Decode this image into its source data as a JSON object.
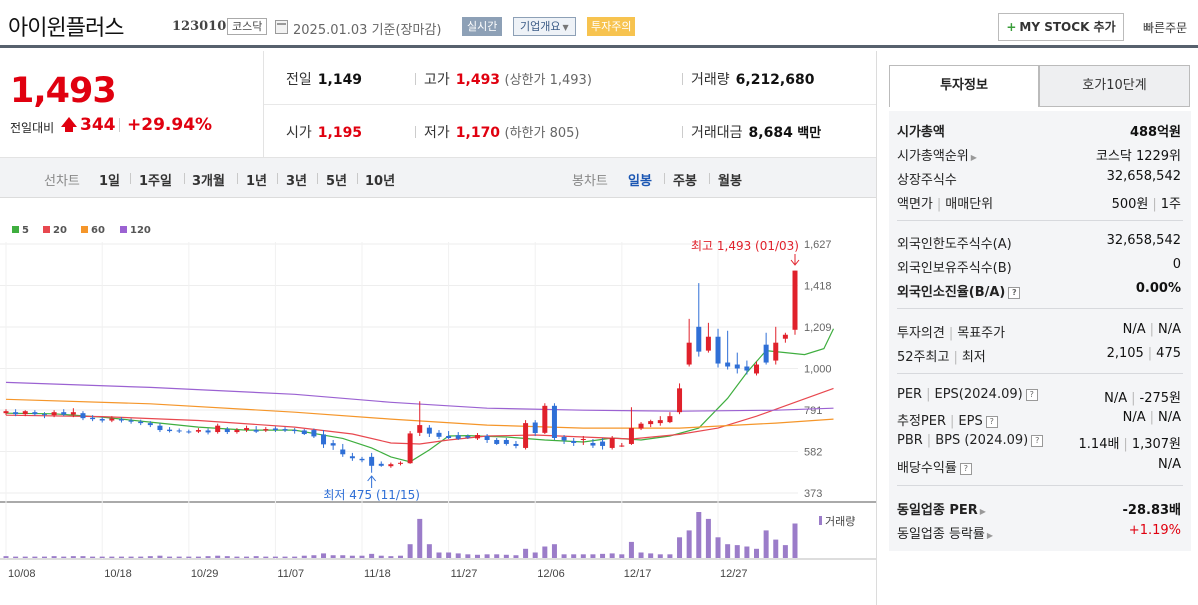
{
  "header": {
    "stock_name": "아이윈플러스",
    "stock_code": "123010",
    "market": "코스닥",
    "date_text": "2025.01.03  기준(장마감)",
    "realtime_label": "실시간",
    "company_label": "기업개요",
    "caution_label": "투자주의",
    "mystock_label": "MY STOCK 추가",
    "quick_order_label": "빠른주문"
  },
  "price": {
    "current": "1,493",
    "change_label": "전일대비",
    "change_amount": "344",
    "change_pct": "+29.94%",
    "prev_label": "전일",
    "prev_value": "1,149",
    "high_label": "고가",
    "high_value": "1,493",
    "upper_limit": "(상한가 1,493)",
    "volume_label": "거래량",
    "volume_value": "6,212,680",
    "open_label": "시가",
    "open_value": "1,195",
    "low_label": "저가",
    "low_value": "1,170",
    "lower_limit": "(하한가 805)",
    "amount_label": "거래대금",
    "amount_value": "8,684",
    "amount_unit": "백만"
  },
  "toolbar": {
    "line_chart_label": "선차트",
    "periods": [
      "1일",
      "1주일",
      "3개월",
      "1년",
      "3년",
      "5년",
      "10년"
    ],
    "candle_chart_label": "봉차트",
    "candle_periods": [
      "일봉",
      "주봉",
      "월봉"
    ],
    "active_candle": "일봉"
  },
  "chart_data": {
    "type": "candlestick",
    "legend": [
      {
        "name": "5",
        "color": "#3fae3f"
      },
      {
        "name": "20",
        "color": "#e8484f"
      },
      {
        "name": "60",
        "color": "#f5962a"
      },
      {
        "name": "120",
        "color": "#9b62d2"
      }
    ],
    "y_ticks": [
      "1,627",
      "1,418",
      "1,209",
      "1,000",
      "791",
      "582",
      "373"
    ],
    "ylim": [
      373,
      1627
    ],
    "x_ticks": [
      "10/08",
      "10/18",
      "10/29",
      "11/07",
      "11/18",
      "11/27",
      "12/06",
      "12/17",
      "12/27"
    ],
    "annotation_high": "최고 1,493 (01/03)",
    "annotation_low": "최저 475 (11/15)",
    "volume_label": "거래량",
    "candles": [
      {
        "o": 775,
        "c": 785,
        "h": 795,
        "l": 765,
        "v": 0.04
      },
      {
        "o": 780,
        "c": 770,
        "h": 795,
        "l": 760,
        "v": 0.03
      },
      {
        "o": 770,
        "c": 785,
        "h": 790,
        "l": 760,
        "v": 0.03
      },
      {
        "o": 780,
        "c": 770,
        "h": 790,
        "l": 762,
        "v": 0.03
      },
      {
        "o": 770,
        "c": 765,
        "h": 780,
        "l": 750,
        "v": 0.03
      },
      {
        "o": 765,
        "c": 780,
        "h": 790,
        "l": 755,
        "v": 0.04
      },
      {
        "o": 780,
        "c": 768,
        "h": 795,
        "l": 760,
        "v": 0.03
      },
      {
        "o": 768,
        "c": 780,
        "h": 800,
        "l": 755,
        "v": 0.04
      },
      {
        "o": 775,
        "c": 750,
        "h": 785,
        "l": 740,
        "v": 0.04
      },
      {
        "o": 752,
        "c": 745,
        "h": 765,
        "l": 735,
        "v": 0.03
      },
      {
        "o": 746,
        "c": 738,
        "h": 755,
        "l": 728,
        "v": 0.03
      },
      {
        "o": 738,
        "c": 748,
        "h": 760,
        "l": 730,
        "v": 0.03
      },
      {
        "o": 745,
        "c": 738,
        "h": 755,
        "l": 728,
        "v": 0.03
      },
      {
        "o": 738,
        "c": 732,
        "h": 748,
        "l": 722,
        "v": 0.03
      },
      {
        "o": 732,
        "c": 725,
        "h": 742,
        "l": 715,
        "v": 0.03
      },
      {
        "o": 725,
        "c": 715,
        "h": 735,
        "l": 705,
        "v": 0.04
      },
      {
        "o": 712,
        "c": 690,
        "h": 725,
        "l": 680,
        "v": 0.05
      },
      {
        "o": 692,
        "c": 685,
        "h": 705,
        "l": 678,
        "v": 0.03
      },
      {
        "o": 688,
        "c": 683,
        "h": 698,
        "l": 675,
        "v": 0.03
      },
      {
        "o": 683,
        "c": 680,
        "h": 692,
        "l": 672,
        "v": 0.03
      },
      {
        "o": 682,
        "c": 690,
        "h": 700,
        "l": 675,
        "v": 0.03
      },
      {
        "o": 688,
        "c": 678,
        "h": 698,
        "l": 668,
        "v": 0.04
      },
      {
        "o": 680,
        "c": 712,
        "h": 722,
        "l": 672,
        "v": 0.05
      },
      {
        "o": 695,
        "c": 680,
        "h": 705,
        "l": 670,
        "v": 0.04
      },
      {
        "o": 680,
        "c": 690,
        "h": 700,
        "l": 672,
        "v": 0.03
      },
      {
        "o": 690,
        "c": 700,
        "h": 712,
        "l": 680,
        "v": 0.03
      },
      {
        "o": 690,
        "c": 682,
        "h": 710,
        "l": 675,
        "v": 0.04
      },
      {
        "o": 688,
        "c": 695,
        "h": 705,
        "l": 680,
        "v": 0.03
      },
      {
        "o": 698,
        "c": 690,
        "h": 708,
        "l": 680,
        "v": 0.03
      },
      {
        "o": 695,
        "c": 688,
        "h": 705,
        "l": 680,
        "v": 0.03
      },
      {
        "o": 690,
        "c": 685,
        "h": 700,
        "l": 672,
        "v": 0.03
      },
      {
        "o": 688,
        "c": 670,
        "h": 695,
        "l": 665,
        "v": 0.05
      },
      {
        "o": 690,
        "c": 658,
        "h": 698,
        "l": 650,
        "v": 0.06
      },
      {
        "o": 668,
        "c": 618,
        "h": 690,
        "l": 600,
        "v": 0.1
      },
      {
        "o": 624,
        "c": 612,
        "h": 640,
        "l": 590,
        "v": 0.06
      },
      {
        "o": 592,
        "c": 568,
        "h": 620,
        "l": 555,
        "v": 0.06
      },
      {
        "o": 558,
        "c": 548,
        "h": 575,
        "l": 535,
        "v": 0.05
      },
      {
        "o": 545,
        "c": 538,
        "h": 555,
        "l": 528,
        "v": 0.05
      },
      {
        "o": 555,
        "c": 510,
        "h": 575,
        "l": 475,
        "v": 0.09
      },
      {
        "o": 520,
        "c": 510,
        "h": 532,
        "l": 505,
        "v": 0.05
      },
      {
        "o": 508,
        "c": 518,
        "h": 526,
        "l": 500,
        "v": 0.04
      },
      {
        "o": 520,
        "c": 525,
        "h": 532,
        "l": 512,
        "v": 0.05
      },
      {
        "o": 523,
        "c": 673,
        "h": 685,
        "l": 520,
        "v": 0.3
      },
      {
        "o": 676,
        "c": 715,
        "h": 835,
        "l": 660,
        "v": 0.85
      },
      {
        "o": 702,
        "c": 672,
        "h": 715,
        "l": 655,
        "v": 0.3
      },
      {
        "o": 676,
        "c": 656,
        "h": 690,
        "l": 645,
        "v": 0.12
      },
      {
        "o": 660,
        "c": 650,
        "h": 685,
        "l": 645,
        "v": 0.12
      },
      {
        "o": 664,
        "c": 646,
        "h": 680,
        "l": 640,
        "v": 0.1
      },
      {
        "o": 660,
        "c": 652,
        "h": 668,
        "l": 645,
        "v": 0.08
      },
      {
        "o": 648,
        "c": 665,
        "h": 675,
        "l": 640,
        "v": 0.07
      },
      {
        "o": 660,
        "c": 640,
        "h": 670,
        "l": 625,
        "v": 0.08
      },
      {
        "o": 640,
        "c": 620,
        "h": 650,
        "l": 615,
        "v": 0.08
      },
      {
        "o": 640,
        "c": 620,
        "h": 650,
        "l": 612,
        "v": 0.07
      },
      {
        "o": 620,
        "c": 610,
        "h": 635,
        "l": 598,
        "v": 0.06
      },
      {
        "o": 600,
        "c": 725,
        "h": 740,
        "l": 592,
        "v": 0.2
      },
      {
        "o": 728,
        "c": 675,
        "h": 740,
        "l": 660,
        "v": 0.12
      },
      {
        "o": 676,
        "c": 812,
        "h": 825,
        "l": 670,
        "v": 0.25
      },
      {
        "o": 812,
        "c": 650,
        "h": 825,
        "l": 640,
        "v": 0.3
      },
      {
        "o": 655,
        "c": 638,
        "h": 665,
        "l": 620,
        "v": 0.08
      },
      {
        "o": 635,
        "c": 625,
        "h": 650,
        "l": 610,
        "v": 0.08
      },
      {
        "o": 640,
        "c": 645,
        "h": 660,
        "l": 615,
        "v": 0.08
      },
      {
        "o": 625,
        "c": 612,
        "h": 645,
        "l": 600,
        "v": 0.08
      },
      {
        "o": 632,
        "c": 610,
        "h": 650,
        "l": 592,
        "v": 0.09
      },
      {
        "o": 600,
        "c": 650,
        "h": 660,
        "l": 592,
        "v": 0.1
      },
      {
        "o": 610,
        "c": 612,
        "h": 625,
        "l": 605,
        "v": 0.08
      },
      {
        "o": 620,
        "c": 700,
        "h": 805,
        "l": 615,
        "v": 0.35
      },
      {
        "o": 698,
        "c": 722,
        "h": 730,
        "l": 690,
        "v": 0.12
      },
      {
        "o": 720,
        "c": 735,
        "h": 742,
        "l": 705,
        "v": 0.1
      },
      {
        "o": 725,
        "c": 740,
        "h": 760,
        "l": 712,
        "v": 0.08
      },
      {
        "o": 730,
        "c": 760,
        "h": 780,
        "l": 725,
        "v": 0.08
      },
      {
        "o": 780,
        "c": 900,
        "h": 925,
        "l": 770,
        "v": 0.45
      },
      {
        "o": 1020,
        "c": 1130,
        "h": 1250,
        "l": 1010,
        "v": 0.6
      },
      {
        "o": 1210,
        "c": 1085,
        "h": 1430,
        "l": 1060,
        "v": 1.0
      },
      {
        "o": 1090,
        "c": 1160,
        "h": 1230,
        "l": 1080,
        "v": 0.85
      },
      {
        "o": 1160,
        "c": 1025,
        "h": 1200,
        "l": 1005,
        "v": 0.45
      },
      {
        "o": 1030,
        "c": 1010,
        "h": 1190,
        "l": 995,
        "v": 0.3
      },
      {
        "o": 1020,
        "c": 1000,
        "h": 1080,
        "l": 975,
        "v": 0.28
      },
      {
        "o": 1010,
        "c": 990,
        "h": 1040,
        "l": 970,
        "v": 0.25
      },
      {
        "o": 975,
        "c": 1020,
        "h": 1035,
        "l": 965,
        "v": 0.2
      },
      {
        "o": 1120,
        "c": 1030,
        "h": 1180,
        "l": 1020,
        "v": 0.6
      },
      {
        "o": 1040,
        "c": 1130,
        "h": 1210,
        "l": 1020,
        "v": 0.4
      },
      {
        "o": 1150,
        "c": 1170,
        "h": 1180,
        "l": 1130,
        "v": 0.28
      },
      {
        "o": 1195,
        "c": 1493,
        "h": 1493,
        "l": 1170,
        "v": 0.75
      }
    ],
    "ma": {
      "ma5": [
        [
          0,
          775
        ],
        [
          5,
          772
        ],
        [
          10,
          755
        ],
        [
          15,
          730
        ],
        [
          20,
          705
        ],
        [
          25,
          690
        ],
        [
          30,
          690
        ],
        [
          35,
          648
        ],
        [
          38,
          600
        ],
        [
          40,
          555
        ],
        [
          42,
          530
        ],
        [
          44,
          590
        ],
        [
          46,
          660
        ],
        [
          48,
          662
        ],
        [
          52,
          655
        ],
        [
          56,
          640
        ],
        [
          60,
          630
        ],
        [
          63,
          650
        ],
        [
          66,
          640
        ],
        [
          69,
          660
        ],
        [
          72,
          700
        ],
        [
          75,
          850
        ],
        [
          77,
          980
        ],
        [
          79,
          1090
        ],
        [
          81,
          1080
        ],
        [
          83,
          1070
        ],
        [
          85,
          1100
        ],
        [
          86,
          1200
        ]
      ],
      "ma20": [
        [
          0,
          765
        ],
        [
          10,
          758
        ],
        [
          20,
          738
        ],
        [
          30,
          705
        ],
        [
          36,
          670
        ],
        [
          40,
          625
        ],
        [
          43,
          620
        ],
        [
          46,
          640
        ],
        [
          50,
          660
        ],
        [
          55,
          665
        ],
        [
          60,
          655
        ],
        [
          65,
          645
        ],
        [
          70,
          668
        ],
        [
          74,
          700
        ],
        [
          78,
          760
        ],
        [
          82,
          830
        ],
        [
          86,
          900
        ]
      ],
      "ma60": [
        [
          0,
          845
        ],
        [
          15,
          822
        ],
        [
          30,
          780
        ],
        [
          40,
          745
        ],
        [
          50,
          715
        ],
        [
          60,
          700
        ],
        [
          70,
          700
        ],
        [
          80,
          725
        ],
        [
          86,
          745
        ]
      ],
      "ma120": [
        [
          0,
          930
        ],
        [
          15,
          905
        ],
        [
          30,
          870
        ],
        [
          40,
          830
        ],
        [
          50,
          800
        ],
        [
          60,
          790
        ],
        [
          70,
          785
        ],
        [
          80,
          790
        ],
        [
          86,
          800
        ]
      ]
    }
  },
  "panel": {
    "tab_info": "투자정보",
    "tab_orderbook": "호가10단계",
    "market_cap_label": "시가총액",
    "market_cap_value": "488억원",
    "cap_rank_label": "시가총액순위",
    "cap_rank_value": "코스닥 1229위",
    "shares_label": "상장주식수",
    "shares_value": "32,658,542",
    "par_label": "액면가",
    "unit_label": "매매단위",
    "par_value": "500원",
    "unit_value": "1주",
    "foreign_limit_label": "외국인한도주식수(A)",
    "foreign_limit_value": "32,658,542",
    "foreign_hold_label": "외국인보유주식수(B)",
    "foreign_hold_value": "0",
    "foreign_ratio_label": "외국인소진율(B/A)",
    "foreign_ratio_value": "0.00%",
    "opinion_label": "투자의견",
    "target_label": "목표주가",
    "opinion_value": "N/A",
    "target_value": "N/A",
    "high52_label": "52주최고",
    "low52_label": "최저",
    "high52_value": "2,105",
    "low52_value": "475",
    "per_label": "PER",
    "eps_label": "EPS(2024.09)",
    "per_value": "N/A",
    "eps_value": "-275원",
    "est_per_label": "추정PER",
    "est_eps_label": "EPS",
    "est_per_value": "N/A",
    "est_eps_value": "N/A",
    "pbr_label": "PBR",
    "bps_label": "BPS (2024.09)",
    "pbr_value": "1.14배",
    "bps_value": "1,307원",
    "div_label": "배당수익률",
    "div_value": "N/A",
    "sector_per_label": "동일업종 PER",
    "sector_per_value": "-28.83배",
    "sector_change_label": "동일업종 등락률",
    "sector_change_value": "+1.19%"
  }
}
